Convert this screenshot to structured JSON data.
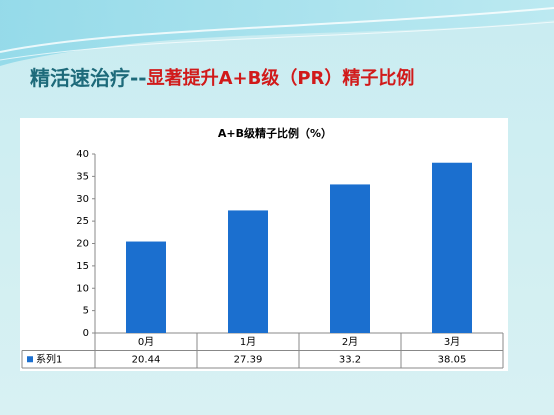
{
  "slide_title": {
    "lead": "精活速治疗--",
    "highlight": "显著提升A+B级（PR）精子比例"
  },
  "chart_data": {
    "type": "bar",
    "title": "A+B级精子比例（%）",
    "categories": [
      "0月",
      "1月",
      "2月",
      "3月"
    ],
    "series": [
      {
        "name": "系列1",
        "color": "#1b6fcf",
        "values": [
          20.44,
          27.39,
          33.2,
          38.05
        ]
      }
    ],
    "ylim": [
      0,
      40
    ],
    "yticks": [
      0,
      5,
      10,
      15,
      20,
      25,
      30,
      35,
      40
    ],
    "grid": false
  }
}
